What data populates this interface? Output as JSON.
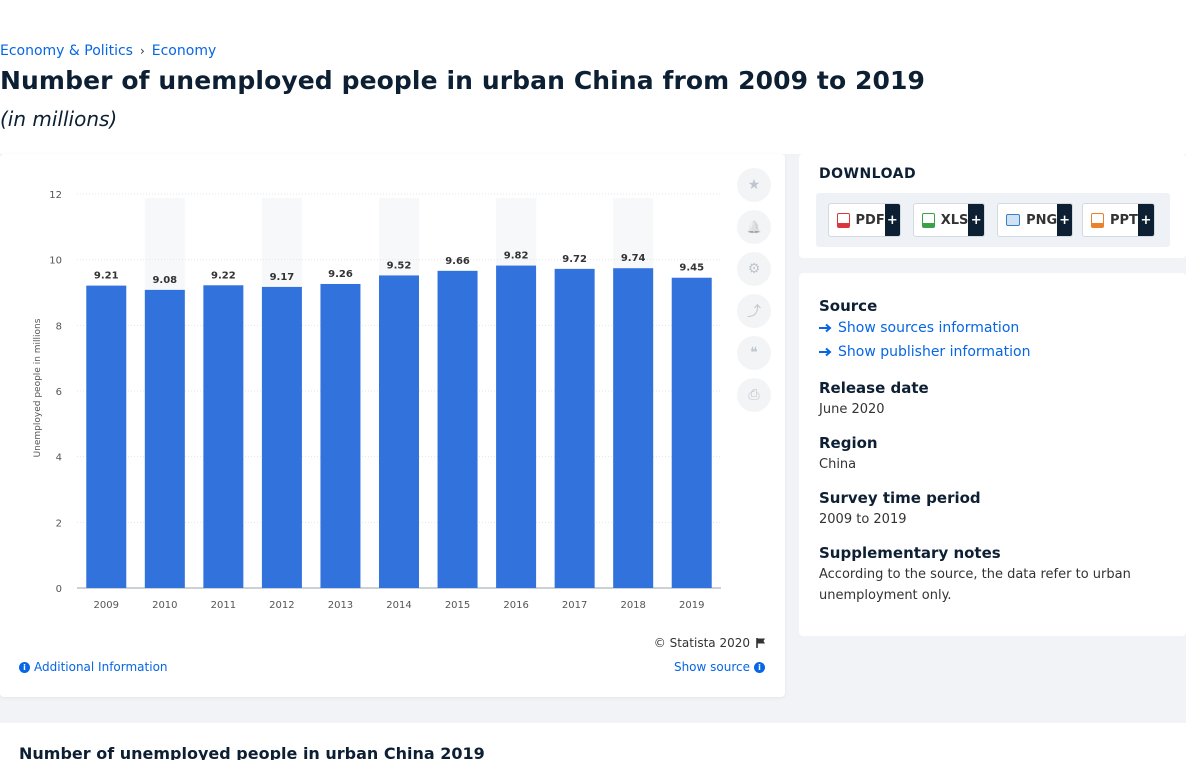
{
  "breadcrumb": {
    "items": [
      "Economy & Politics",
      "Economy"
    ],
    "separator": "›"
  },
  "page": {
    "title": "Number of unemployed people in urban China from 2009 to 2019",
    "subtitle": "(in millions)"
  },
  "chart_data": {
    "type": "bar",
    "categories": [
      "2009",
      "2010",
      "2011",
      "2012",
      "2013",
      "2014",
      "2015",
      "2016",
      "2017",
      "2018",
      "2019"
    ],
    "values": [
      9.21,
      9.08,
      9.22,
      9.17,
      9.26,
      9.52,
      9.66,
      9.82,
      9.72,
      9.74,
      9.45
    ],
    "value_labels": [
      "9.21",
      "9.08",
      "9.22",
      "9.17",
      "9.26",
      "9.52",
      "9.66",
      "9.82",
      "9.72",
      "9.74",
      "9.45"
    ],
    "ylabel": "Unemployed people in millions",
    "ylim": [
      0,
      12
    ],
    "yticks": [
      "0",
      "2",
      "4",
      "6",
      "8",
      "10",
      "12"
    ],
    "grid": true,
    "bar_color": "#3272dd",
    "column_shade_color": "#f7f8fa"
  },
  "chart_footer": {
    "credit": "© Statista 2020",
    "additional_info": "Additional Information",
    "show_source": "Show source"
  },
  "tools": [
    {
      "icon": "star-icon",
      "glyph": "★"
    },
    {
      "icon": "bell-icon",
      "glyph": "🔔"
    },
    {
      "icon": "gear-icon",
      "glyph": "⚙"
    },
    {
      "icon": "share-icon",
      "glyph": "⤴"
    },
    {
      "icon": "quote-icon",
      "glyph": "❝"
    },
    {
      "icon": "print-icon",
      "glyph": "⎙"
    }
  ],
  "download": {
    "title": "DOWNLOAD",
    "buttons": [
      {
        "label": "PDF",
        "icon": "pdf-file-icon",
        "color": "#d9363e"
      },
      {
        "label": "XLS",
        "icon": "xls-file-icon",
        "color": "#3aa04a"
      },
      {
        "label": "PNG",
        "icon": "png-file-icon",
        "color": "#3b82c4"
      },
      {
        "label": "PPT",
        "icon": "ppt-file-icon",
        "color": "#e8822c"
      }
    ],
    "plus": "+"
  },
  "meta": {
    "source_heading": "Source",
    "show_sources": "Show sources information",
    "show_publisher": "Show publisher information",
    "release_heading": "Release date",
    "release_value": "June 2020",
    "region_heading": "Region",
    "region_value": "China",
    "period_heading": "Survey time period",
    "period_value": "2009 to 2019",
    "notes_heading": "Supplementary notes",
    "notes_value": "According to the source, the data refer to urban unemployment only."
  },
  "bottom": {
    "title": "Number of unemployed people in urban China 2019"
  }
}
